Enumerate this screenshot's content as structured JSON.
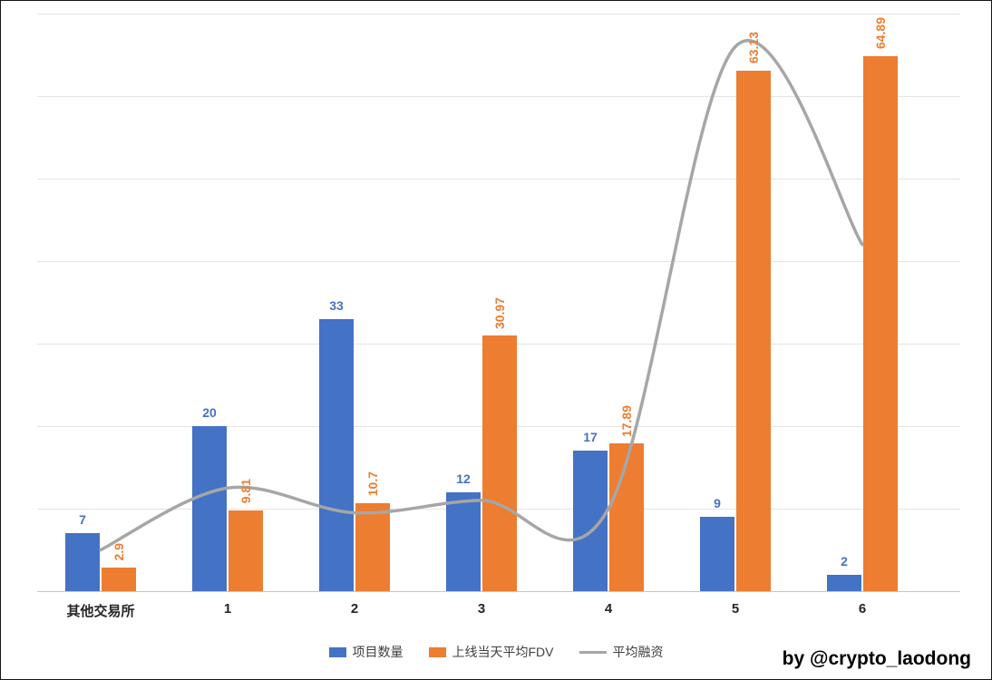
{
  "chart_data": {
    "type": "bar",
    "title": "",
    "categories": [
      "其他交易所",
      "1",
      "2",
      "3",
      "4",
      "5",
      "6"
    ],
    "series": [
      {
        "name": "项目数量",
        "type": "bar",
        "color": "#4472C4",
        "values": [
          7,
          20,
          33,
          12,
          17,
          9,
          2
        ],
        "data_labels": [
          "7",
          "20",
          "33",
          "12",
          "17",
          "9",
          "2"
        ],
        "label_orientation": "horizontal"
      },
      {
        "name": "上线当天平均FDV",
        "type": "bar",
        "color": "#ED7D31",
        "values": [
          2.9,
          9.81,
          10.7,
          30.97,
          17.89,
          63.13,
          64.89
        ],
        "data_labels": [
          "2.9",
          "9.81",
          "10.7",
          "30.97",
          "17.89",
          "63.13",
          "64.89"
        ],
        "label_orientation": "vertical"
      },
      {
        "name": "平均融资",
        "type": "line",
        "color": "#A6A6A6",
        "values": [
          5,
          12.5,
          9.5,
          11,
          10,
          66,
          42
        ],
        "data_labels_visible": false
      }
    ],
    "xlabel": "",
    "ylabel": "",
    "ylim": [
      0,
      70
    ],
    "gridline_step": 10,
    "grid": true,
    "y_axis_labels_visible": false,
    "legend_position": "bottom"
  },
  "credit": "by @crypto_laodong"
}
